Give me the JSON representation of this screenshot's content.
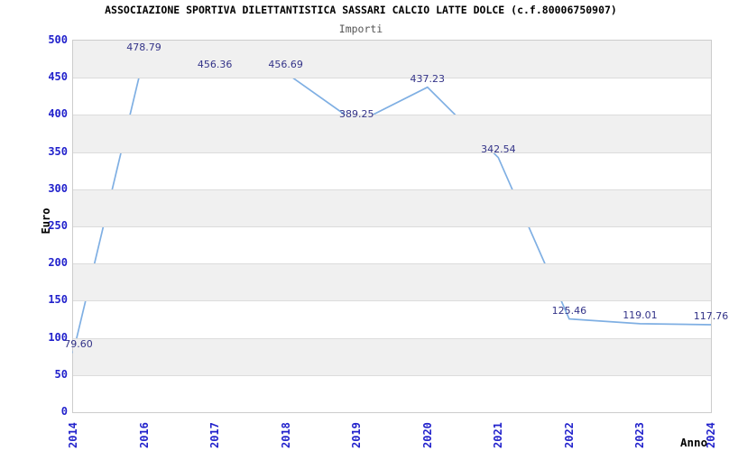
{
  "chart_data": {
    "type": "line",
    "title": "ASSOCIAZIONE SPORTIVA DILETTANTISTICA SASSARI CALCIO LATTE DOLCE (c.f.80006750907)",
    "subtitle": "Importi",
    "xlabel": "Anno",
    "ylabel": "Euro",
    "categories": [
      "2014",
      "2016",
      "2017",
      "2018",
      "2019",
      "2020",
      "2021",
      "2022",
      "2023",
      "2024"
    ],
    "values": [
      79.6,
      478.79,
      456.36,
      456.69,
      389.25,
      437.23,
      342.54,
      125.46,
      119.01,
      117.76
    ],
    "point_labels": [
      "79.60",
      "478.79",
      "456.36",
      "456.69",
      "389.25",
      "437.23",
      "342.54",
      "125.46",
      "119.01",
      "117.76"
    ],
    "ylim": [
      0,
      500
    ],
    "yticks": [
      0,
      50,
      100,
      150,
      200,
      250,
      300,
      350,
      400,
      450,
      500
    ],
    "grid": "horizontal-bands-alternating",
    "legend": "none",
    "colors": {
      "line": "#7fafe3",
      "tick_label": "#2222cc",
      "data_label": "#333388",
      "band": "#f0f0f0",
      "gridline": "#dcdcdc",
      "plot_border": "#cccccc",
      "title": "#000000",
      "subtitle": "#555555",
      "axis_label": "#000000"
    }
  }
}
